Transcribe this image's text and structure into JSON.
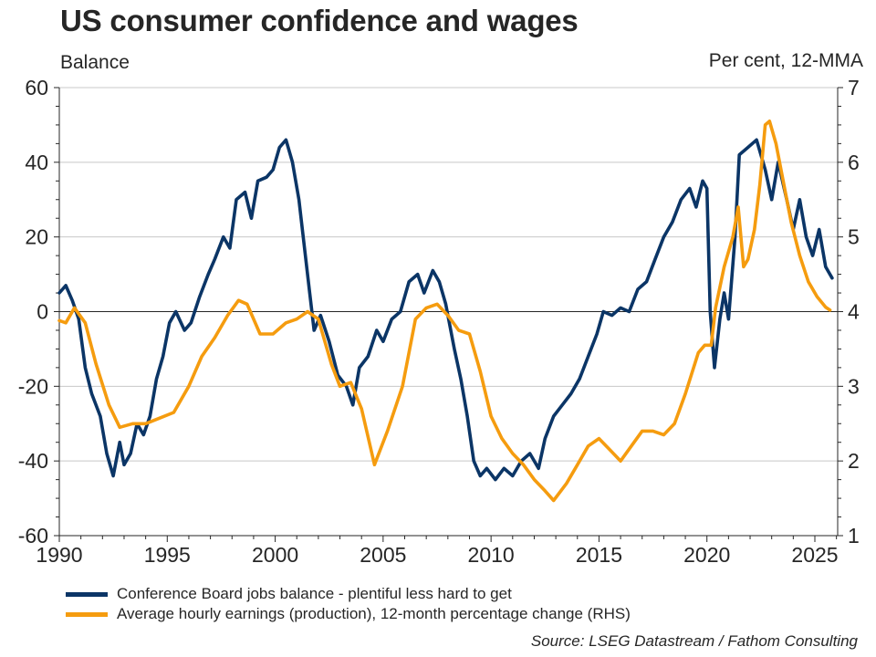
{
  "chart_data": {
    "type": "line",
    "title": "US consumer confidence and wages",
    "ylabel_left": "Balance",
    "ylabel_right": "Per cent, 12-MMA",
    "xlabel": "",
    "xlim": [
      1990,
      2026.2
    ],
    "ylim_left": [
      -60,
      60
    ],
    "ylim_right": [
      1,
      7
    ],
    "x_ticks": [
      1990,
      1995,
      2000,
      2005,
      2010,
      2015,
      2020,
      2025
    ],
    "y_ticks_left": [
      -60,
      -40,
      -20,
      0,
      20,
      40,
      60
    ],
    "y_ticks_right": [
      1,
      2,
      3,
      4,
      5,
      6,
      7
    ],
    "grid": true,
    "legend_position": "bottom",
    "colors": {
      "series_1": "#0b3566",
      "series_2": "#f59c0f",
      "grid": "#c8c8c8",
      "zero_line": "#262626"
    },
    "series": [
      {
        "name": "Conference Board jobs balance - plentiful less hard to get",
        "axis": "left",
        "x": [
          1990.0,
          1990.3,
          1990.6,
          1990.9,
          1991.2,
          1991.5,
          1991.9,
          1992.2,
          1992.5,
          1992.8,
          1993.0,
          1993.3,
          1993.6,
          1993.9,
          1994.2,
          1994.5,
          1994.8,
          1995.1,
          1995.4,
          1995.8,
          1996.1,
          1996.5,
          1996.9,
          1997.2,
          1997.6,
          1997.9,
          1998.2,
          1998.6,
          1998.9,
          1999.2,
          1999.6,
          1999.9,
          2000.2,
          2000.5,
          2000.8,
          2001.1,
          2001.3,
          2001.6,
          2001.8,
          2002.1,
          2002.5,
          2002.9,
          2003.3,
          2003.6,
          2003.9,
          2004.3,
          2004.7,
          2005.0,
          2005.4,
          2005.8,
          2006.2,
          2006.6,
          2006.9,
          2007.3,
          2007.6,
          2007.9,
          2008.3,
          2008.6,
          2008.9,
          2009.2,
          2009.5,
          2009.8,
          2010.2,
          2010.6,
          2011.0,
          2011.4,
          2011.8,
          2012.2,
          2012.5,
          2012.9,
          2013.3,
          2013.7,
          2014.1,
          2014.5,
          2014.9,
          2015.2,
          2015.6,
          2016.0,
          2016.4,
          2016.8,
          2017.2,
          2017.6,
          2018.0,
          2018.4,
          2018.8,
          2019.2,
          2019.5,
          2019.8,
          2020.0,
          2020.15,
          2020.35,
          2020.6,
          2020.8,
          2021.0,
          2021.3,
          2021.5,
          2021.9,
          2022.3,
          2022.7,
          2023.0,
          2023.3,
          2023.7,
          2024.0,
          2024.3,
          2024.6,
          2024.9,
          2025.2,
          2025.5,
          2025.8
        ],
        "values": [
          5,
          7,
          3,
          -2,
          -15,
          -22,
          -28,
          -38,
          -44,
          -35,
          -41,
          -38,
          -30,
          -33,
          -28,
          -18,
          -12,
          -3,
          0,
          -5,
          -3,
          4,
          10,
          14,
          20,
          17,
          30,
          32,
          25,
          35,
          36,
          38,
          44,
          46,
          40,
          30,
          20,
          5,
          -5,
          -1,
          -8,
          -17,
          -20,
          -25,
          -15,
          -12,
          -5,
          -8,
          -2,
          0,
          8,
          10,
          5,
          11,
          8,
          2,
          -10,
          -18,
          -28,
          -40,
          -44,
          -42,
          -45,
          -42,
          -44,
          -40,
          -38,
          -42,
          -34,
          -28,
          -25,
          -22,
          -18,
          -12,
          -6,
          0,
          -1,
          1,
          0,
          6,
          8,
          14,
          20,
          24,
          30,
          33,
          28,
          35,
          33,
          0,
          -15,
          -2,
          5,
          -2,
          20,
          42,
          44,
          46,
          38,
          30,
          40,
          30,
          22,
          30,
          20,
          15,
          22,
          12,
          9
        ]
      },
      {
        "name": "Average hourly earnings (production), 12-month percentage change (RHS)",
        "axis": "right",
        "x": [
          1990.0,
          1990.3,
          1990.7,
          1991.2,
          1991.7,
          1992.3,
          1992.8,
          1993.4,
          1994.0,
          1994.7,
          1995.3,
          1996.0,
          1996.6,
          1997.2,
          1997.8,
          1998.3,
          1998.7,
          1999.3,
          1999.9,
          2000.5,
          2001.0,
          2001.5,
          2002.0,
          2002.6,
          2003.0,
          2003.5,
          2004.0,
          2004.6,
          2005.2,
          2005.9,
          2006.5,
          2007.0,
          2007.5,
          2008.0,
          2008.5,
          2009.0,
          2009.5,
          2010.0,
          2010.5,
          2011.0,
          2011.5,
          2012.0,
          2012.5,
          2012.9,
          2013.5,
          2014.0,
          2014.5,
          2015.0,
          2015.5,
          2016.0,
          2016.5,
          2017.0,
          2017.5,
          2018.0,
          2018.5,
          2019.0,
          2019.6,
          2019.9,
          2020.2,
          2020.4,
          2020.8,
          2021.2,
          2021.45,
          2021.7,
          2021.9,
          2022.2,
          2022.45,
          2022.7,
          2022.9,
          2023.2,
          2023.5,
          2023.9,
          2024.3,
          2024.7,
          2025.1,
          2025.5,
          2025.7
        ],
        "values": [
          3.88,
          3.85,
          4.05,
          3.85,
          3.3,
          2.75,
          2.45,
          2.5,
          2.5,
          2.58,
          2.65,
          3.0,
          3.4,
          3.65,
          3.95,
          4.15,
          4.1,
          3.7,
          3.7,
          3.85,
          3.9,
          4.0,
          3.9,
          3.3,
          3.0,
          3.05,
          2.7,
          1.95,
          2.4,
          3.0,
          3.9,
          4.05,
          4.1,
          3.95,
          3.75,
          3.7,
          3.2,
          2.6,
          2.3,
          2.1,
          1.95,
          1.75,
          1.6,
          1.47,
          1.7,
          1.95,
          2.2,
          2.3,
          2.15,
          2.0,
          2.2,
          2.4,
          2.4,
          2.35,
          2.5,
          2.9,
          3.45,
          3.55,
          3.55,
          4.05,
          4.6,
          5.0,
          5.4,
          4.6,
          4.7,
          5.1,
          5.7,
          6.5,
          6.55,
          6.25,
          5.8,
          5.2,
          4.75,
          4.4,
          4.2,
          4.06,
          4.02
        ]
      }
    ]
  },
  "header": {
    "title": "US consumer confidence and wages",
    "left_unit": "Balance",
    "right_unit": "Per cent, 12-MMA"
  },
  "legend": {
    "items": [
      {
        "label": "Conference Board jobs balance - plentiful less hard to get",
        "color": "#0b3566"
      },
      {
        "label": "Average hourly earnings (production), 12-month percentage change (RHS)",
        "color": "#f59c0f"
      }
    ]
  },
  "footer": {
    "source": "Source: LSEG Datastream / Fathom Consulting"
  }
}
